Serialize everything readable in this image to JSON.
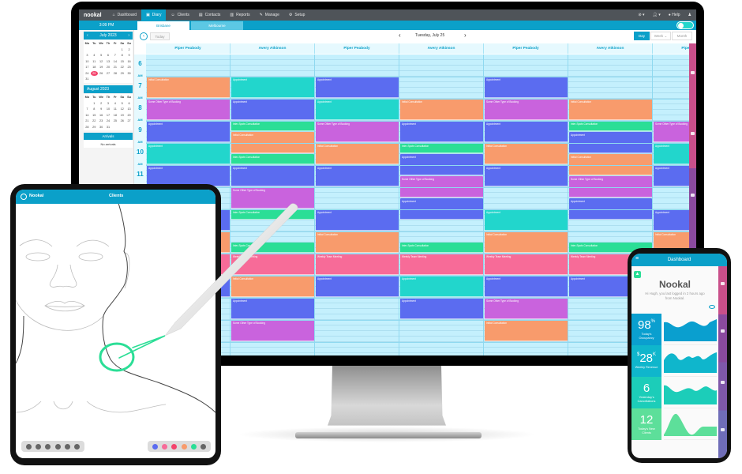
{
  "colors": {
    "accent": "#0ba0c9",
    "nav": "#4f5459",
    "selected_date": "#f4436c"
  },
  "appointment_colors": {
    "orange": "#f89b6c",
    "purple": "#c963dd",
    "blue": "#5b6cf0",
    "teal": "#22d6cc",
    "green": "#2bde96",
    "pink": "#f76b98"
  },
  "nav": {
    "logo": "nookal",
    "items": [
      {
        "label": "Dashboard",
        "icon": "home-icon"
      },
      {
        "label": "Diary",
        "icon": "calendar-icon",
        "active": true
      },
      {
        "label": "Clients",
        "icon": "users-icon"
      },
      {
        "label": "Contacts",
        "icon": "contacts-icon"
      },
      {
        "label": "Reports",
        "icon": "chart-icon"
      },
      {
        "label": "Manage",
        "icon": "wrench-icon"
      },
      {
        "label": "Setup",
        "icon": "gear-icon"
      }
    ],
    "help": "Help"
  },
  "diary": {
    "clock": "3:09 PM",
    "locations": [
      {
        "label": "Brisbane",
        "active": true
      },
      {
        "label": "Melbourne"
      }
    ],
    "today_label": "Today",
    "date_label": "Tuesday, July 25",
    "views": [
      {
        "label": "Day",
        "active": true
      },
      {
        "label": "Week"
      },
      {
        "label": "Month"
      }
    ],
    "mini_calendars": [
      {
        "title": "July 2023",
        "weekdays": [
          "Mo",
          "Tu",
          "We",
          "Th",
          "Fr",
          "Sa",
          "Su"
        ],
        "lead": 5,
        "days": 31,
        "selected": 25
      },
      {
        "title": "August 2023",
        "weekdays": [
          "Mo",
          "Tu",
          "We",
          "Th",
          "Fr",
          "Sa",
          "Su"
        ],
        "lead": 1,
        "days": 31
      }
    ],
    "arrivals": {
      "title": "Arrivals",
      "empty": "No arrivals"
    },
    "hours": [
      {
        "h": "6",
        "p": "AM"
      },
      {
        "h": "7",
        "p": "AM"
      },
      {
        "h": "8",
        "p": "AM"
      },
      {
        "h": "9",
        "p": "AM"
      },
      {
        "h": "10",
        "p": "AM"
      },
      {
        "h": "11",
        "p": "AM"
      }
    ],
    "day_start": 6,
    "columns": [
      {
        "name": "Piper Peabody",
        "appts": [
          [
            7,
            8,
            "Initial Consultation",
            "orange"
          ],
          [
            8,
            9,
            "Some Other Type of Booking",
            "purple"
          ],
          [
            9,
            10,
            "Appointment",
            "blue"
          ],
          [
            10,
            11,
            "Appointment",
            "teal"
          ],
          [
            11,
            12,
            "Appointment",
            "blue"
          ],
          [
            13,
            14,
            "Appointment",
            "blue"
          ],
          [
            14,
            15,
            "Initial Consultation",
            "orange"
          ],
          [
            15,
            16,
            "Weekly Team Meeting",
            "pink"
          ],
          [
            16,
            17,
            "Appointment",
            "blue"
          ]
        ]
      },
      {
        "name": "Avery Atkinson",
        "appts": [
          [
            7,
            8,
            "Appointment",
            "teal"
          ],
          [
            8,
            9,
            "Appointment",
            "blue"
          ],
          [
            9,
            9.5,
            "Inter-Spots Consultation",
            "green"
          ],
          [
            9.5,
            10.5,
            "Initial Consultation",
            "orange"
          ],
          [
            10.5,
            11,
            "Inter-Spots Consultation",
            "green"
          ],
          [
            11,
            12,
            "Appointment",
            "blue"
          ],
          [
            12,
            13,
            "Some Other Type of Booking",
            "purple"
          ],
          [
            13,
            13.5,
            "Inter-Spots Consultation",
            "green"
          ],
          [
            14.5,
            15,
            "Inter-Spots Consultation",
            "green"
          ],
          [
            15,
            16,
            "Weekly Team Meeting",
            "pink"
          ],
          [
            16,
            17,
            "Initial Consultation",
            "orange"
          ],
          [
            17,
            18,
            "Appointment",
            "blue"
          ],
          [
            18,
            19,
            "Some Other Type of Booking",
            "purple"
          ]
        ]
      },
      {
        "name": "Piper Peabody",
        "appts": [
          [
            7,
            8,
            "Appointment",
            "blue"
          ],
          [
            8,
            9,
            "Appointment",
            "teal"
          ],
          [
            9,
            10,
            "Some Other Type of Booking",
            "purple"
          ],
          [
            10,
            11,
            "Initial Consultation",
            "orange"
          ],
          [
            11,
            12,
            "Appointment",
            "blue"
          ],
          [
            13,
            14,
            "Appointment",
            "blue"
          ],
          [
            14,
            15,
            "Initial Consultation",
            "orange"
          ],
          [
            15,
            16,
            "Weekly Team Meeting",
            "pink"
          ],
          [
            16,
            17,
            "Appointment",
            "blue"
          ]
        ]
      },
      {
        "name": "Avery Atkinson",
        "appts": [
          [
            8,
            9,
            "Initial Consultation",
            "orange"
          ],
          [
            9,
            10,
            "Appointment",
            "blue"
          ],
          [
            10,
            10.5,
            "Inter-Spots Consultation",
            "green"
          ],
          [
            10.5,
            11.5,
            "Appointment",
            "blue"
          ],
          [
            11.5,
            12.5,
            "Some Other Type of Booking",
            "purple"
          ],
          [
            12.5,
            13.5,
            "Appointment",
            "blue"
          ],
          [
            14.5,
            15,
            "Inter-Spots Consultation",
            "green"
          ],
          [
            15,
            16,
            "Weekly Team Meeting",
            "pink"
          ],
          [
            16,
            17,
            "Appointment",
            "teal"
          ],
          [
            17,
            18,
            "Appointment",
            "blue"
          ]
        ]
      },
      {
        "name": "Piper Peabody",
        "appts": [
          [
            7,
            8,
            "Appointment",
            "blue"
          ],
          [
            8,
            9,
            "Some Other Type of Booking",
            "purple"
          ],
          [
            9,
            10,
            "Appointment",
            "blue"
          ],
          [
            10,
            11,
            "Initial Consultation",
            "orange"
          ],
          [
            11,
            12,
            "Appointment",
            "blue"
          ],
          [
            13,
            14,
            "Appointment",
            "teal"
          ],
          [
            14,
            15,
            "Initial Consultation",
            "orange"
          ],
          [
            15,
            16,
            "Weekly Team Meeting",
            "pink"
          ],
          [
            16,
            17,
            "Appointment",
            "blue"
          ],
          [
            17,
            18,
            "Some Other Type of Booking",
            "purple"
          ],
          [
            18,
            19,
            "Initial Consultation",
            "orange"
          ]
        ]
      },
      {
        "name": "Avery Atkinson",
        "appts": [
          [
            8,
            9,
            "Initial Consultation",
            "orange"
          ],
          [
            9,
            9.5,
            "Inter-Spots Consultation",
            "green"
          ],
          [
            9.5,
            10.5,
            "Appointment",
            "blue"
          ],
          [
            10.5,
            11.5,
            "Initial Consultation",
            "orange"
          ],
          [
            11.5,
            12.5,
            "Some Other Type of Booking",
            "purple"
          ],
          [
            12.5,
            13.5,
            "Appointment",
            "blue"
          ],
          [
            14.5,
            15,
            "Inter-Spots Consultation",
            "green"
          ],
          [
            15,
            16,
            "Weekly Team Meeting",
            "pink"
          ],
          [
            16,
            17,
            "Appointment",
            "blue"
          ]
        ]
      },
      {
        "name": "Piper Peabody",
        "appts": [
          [
            9,
            10,
            "Some Other Type of Booking",
            "purple"
          ],
          [
            10,
            11,
            "Appointment",
            "teal"
          ],
          [
            11,
            12,
            "Appointment",
            "blue"
          ],
          [
            13,
            14,
            "Appointment",
            "blue"
          ],
          [
            14,
            15,
            "Initial Consultation",
            "orange"
          ],
          [
            15,
            16,
            "Weekly Team Meeting",
            "pink"
          ],
          [
            16,
            17,
            "Appointment",
            "blue"
          ]
        ]
      }
    ]
  },
  "tablet": {
    "brand": "Nookal",
    "title": "Clients",
    "pen_colors": [
      "#5b6cf0",
      "#f76b98",
      "#f4436c",
      "#f89b6c",
      "#2bde96",
      "#666666"
    ],
    "annotation_color": "#2bde96"
  },
  "phone": {
    "title": "Dashboard",
    "brand": "Nookal",
    "greeting": "Hi Hugh, you last logged in 2 hours ago from Nookal.",
    "stats": [
      {
        "prefix": "",
        "value": "98",
        "suffix": "%",
        "label": "Today's Occupancy",
        "color": "#0a9fcf"
      },
      {
        "prefix": "$",
        "value": "28",
        "suffix": "K",
        "label": "Weekly Revenue",
        "color": "#0fb6cc"
      },
      {
        "prefix": "",
        "value": "6",
        "suffix": "",
        "label": "Yesterday's Cancellations",
        "color": "#1ccdb9"
      },
      {
        "prefix": "",
        "value": "12",
        "suffix": "",
        "label": "Today's New Clients",
        "color": "#5ddf9a"
      }
    ]
  }
}
